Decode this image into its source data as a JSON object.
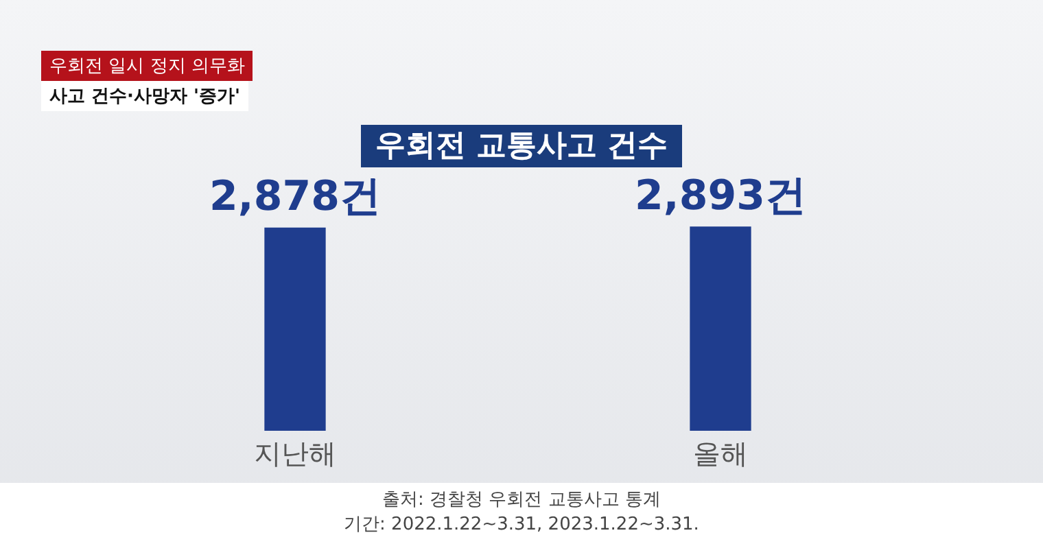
{
  "chart_data": {
    "type": "bar",
    "title": "우회전 교통사고 건수",
    "subtitle": "사고 건수·사망자 '증가'",
    "annotations": [
      "우회전 일시 정지 의무화",
      "출처: 경찰청 우회전 교통사고 통계",
      "기간: 2022.1.22~3.31, 2023.1.22~3.31."
    ],
    "categories": [
      "지난해",
      "올해"
    ],
    "values": [
      2878,
      2893
    ],
    "value_labels": [
      "2,878건",
      "2,893건"
    ],
    "color": "#1f3d8e",
    "tick_labels": "x",
    "grid": false,
    "legend": false
  }
}
